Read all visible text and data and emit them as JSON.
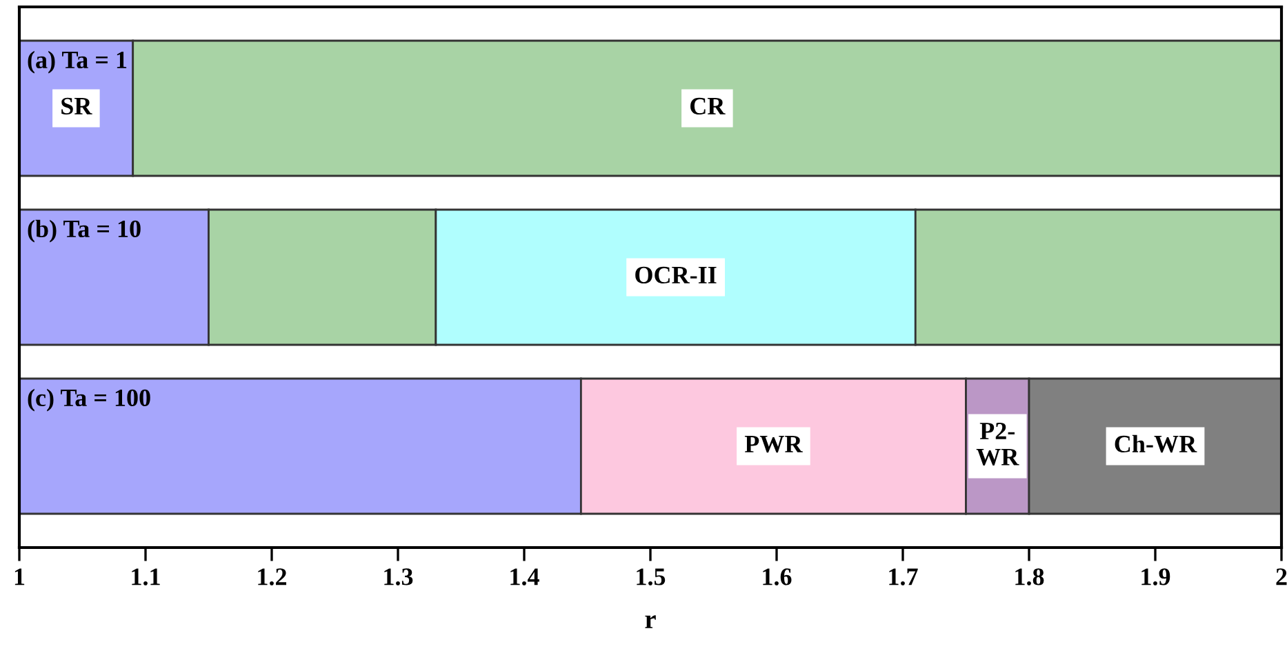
{
  "chart_data": {
    "type": "bar",
    "orientation": "horizontal",
    "xlabel": "r",
    "categories": [
      "(a) Ta = 1",
      "(b) Ta = 10",
      "(c) Ta = 100"
    ],
    "series": [
      {
        "base": [
          1,
          1,
          1
        ],
        "values": [
          0.09,
          0.15,
          0.445
        ],
        "colors": [
          "#a6a6fc",
          "#a6a6fc",
          "#a6a6fc"
        ],
        "value_labels": [
          "SR",
          null,
          null
        ]
      },
      {
        "base": [
          1.09,
          1.15,
          1.445
        ],
        "values": [
          0.91,
          0.18,
          0.305
        ],
        "colors": [
          "#a8d3a5",
          "#a8d3a5",
          "#fdc8df"
        ],
        "value_labels": [
          "CR",
          null,
          "PWR"
        ]
      },
      {
        "base": [
          null,
          1.33,
          1.75
        ],
        "values": [
          null,
          0.38,
          0.05
        ],
        "colors": [
          null,
          "#b0fefe",
          "#bb97c6"
        ],
        "value_labels": [
          null,
          "OCR-II",
          "P2-\nWR"
        ]
      },
      {
        "base": [
          null,
          1.71,
          1.8
        ],
        "values": [
          null,
          0.29,
          0.2
        ],
        "colors": [
          null,
          "#a8d3a5",
          "#808080"
        ],
        "value_labels": [
          null,
          null,
          "Ch-WR"
        ]
      }
    ],
    "xlim": [
      1,
      2
    ],
    "xticks": [
      1,
      1.1,
      1.2,
      1.3,
      1.4,
      1.5,
      1.6,
      1.7,
      1.8,
      1.9,
      2
    ],
    "tick_labels": "x",
    "grid": false,
    "legend": false
  }
}
